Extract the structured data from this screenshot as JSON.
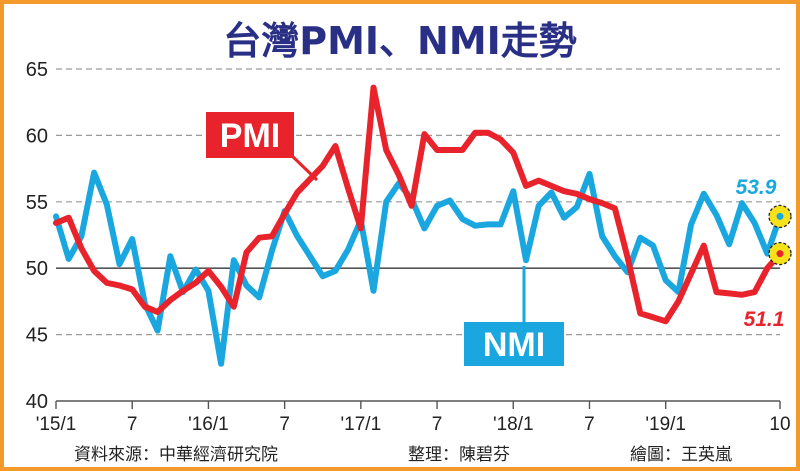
{
  "chart_data": {
    "type": "line",
    "title": "台灣PMI、NMI走勢",
    "ylim": [
      40,
      65
    ],
    "yticks": [
      40,
      45,
      50,
      55,
      60,
      65
    ],
    "grid": "horizontal dashed",
    "reference_line": 50,
    "xlim": [
      0,
      57
    ],
    "xticks": [
      {
        "i": 0,
        "label": "'15/1"
      },
      {
        "i": 6,
        "label": "7"
      },
      {
        "i": 12,
        "label": "'16/1"
      },
      {
        "i": 18,
        "label": "7"
      },
      {
        "i": 24,
        "label": "'17/1"
      },
      {
        "i": 30,
        "label": "7"
      },
      {
        "i": 36,
        "label": "'18/1"
      },
      {
        "i": 42,
        "label": "7"
      },
      {
        "i": 48,
        "label": "'19/1"
      },
      {
        "i": 57,
        "label": "10"
      }
    ],
    "series": [
      {
        "name": "PMI",
        "color": "#e8232b",
        "values": [
          53.4,
          53.8,
          51.5,
          49.8,
          48.9,
          48.7,
          48.4,
          47.1,
          46.7,
          47.6,
          48.3,
          48.9,
          49.8,
          48.6,
          47.1,
          51.2,
          52.3,
          52.4,
          54.1,
          55.7,
          56.7,
          57.7,
          59.2,
          56.0,
          53.0,
          63.6,
          58.9,
          57.0,
          54.7,
          60.1,
          58.9,
          58.9,
          58.9,
          60.2,
          60.2,
          59.7,
          58.7,
          56.2,
          56.6,
          56.2,
          55.8,
          55.6,
          55.2,
          54.9,
          54.5,
          50.8,
          46.6,
          46.3,
          46.0,
          47.5,
          49.6,
          51.7,
          48.2,
          48.1,
          48.0,
          48.2,
          50.0,
          51.1
        ]
      },
      {
        "name": "NMI",
        "color": "#1aa7e0",
        "values": [
          53.9,
          50.7,
          52.4,
          57.2,
          54.8,
          50.3,
          52.2,
          47.3,
          45.3,
          50.9,
          48.2,
          49.9,
          48.3,
          42.8,
          50.6,
          48.7,
          47.8,
          51.3,
          54.3,
          52.4,
          50.9,
          49.4,
          49.8,
          51.4,
          53.6,
          48.3,
          55.0,
          56.4,
          55.2,
          53.0,
          54.7,
          55.1,
          53.7,
          53.2,
          53.3,
          53.3,
          55.8,
          50.6,
          54.7,
          55.7,
          53.8,
          54.6,
          57.1,
          52.4,
          50.9,
          49.7,
          52.3,
          51.7,
          49.1,
          48.2,
          53.3,
          55.6,
          54.0,
          51.8,
          54.9,
          53.4,
          51.1,
          53.9
        ]
      }
    ],
    "end_labels": {
      "nmi": "53.9",
      "pmi": "51.1"
    },
    "series_labels": {
      "pmi": "PMI",
      "nmi": "NMI"
    }
  },
  "footer": {
    "source": "資料來源：中華經濟研究院",
    "editor": "整理：陳碧芬",
    "illustrator": "繪圖：王英嵐"
  },
  "colors": {
    "border": "#f39a2b",
    "title": "#2a2f86",
    "pmi": "#e8232b",
    "nmi": "#1aa7e0",
    "highlight": "#f6e11a"
  }
}
